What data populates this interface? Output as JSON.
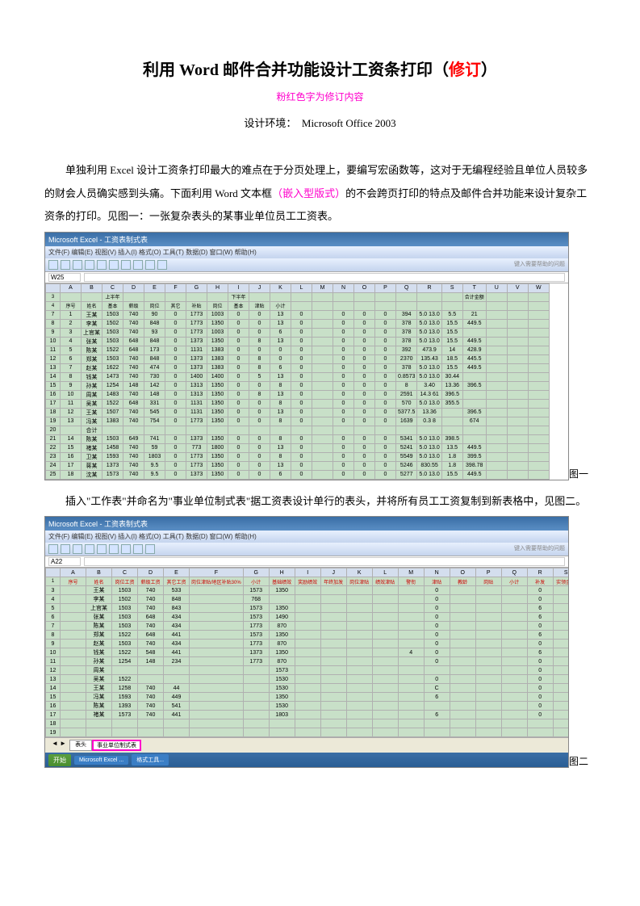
{
  "title_main": "利用 Word 邮件合并功能设计工资条打印（",
  "title_rev": "修订",
  "title_end": "）",
  "subtitle": "粉红色字为修订内容",
  "env_label": "设计环境：",
  "env_value": "Microsoft Office 2003",
  "para1_a": "单独利用 Excel 设计工资条打印最大的难点在于分页处理上，要编写宏函数等，这对于无编程经验且单位人员较多的财会人员确实感到头痛。下面利用 Word 文本框",
  "para1_pink": "（嵌入型版式）",
  "para1_b": "的不会跨页打印的特点及邮件合并功能来设计复杂工资条的打印。见图一：一张复杂表头的某事业单位员工工资表。",
  "para2": "插入\"工作表\"并命名为\"事业单位制式表\"据工资表设计单行的表头，并将所有员工工资复制到新表格中，见图二。",
  "fig1_label": "图一",
  "fig2_label": "图二",
  "excel": {
    "titlebar": "Microsoft Excel - 工资表制式表",
    "menu": "文件(F)  编辑(E)  视图(V)  插入(I)  格式(O)  工具(T)  数据(D)  窗口(W)  帮助(H)",
    "help_hint": "键入需要帮助的问题",
    "cellref1": "W25",
    "cellref2": "A22",
    "cols1": [
      "",
      "A",
      "B",
      "C",
      "D",
      "E",
      "F",
      "G",
      "H",
      "I",
      "J",
      "K",
      "L",
      "M",
      "N",
      "O",
      "P",
      "Q",
      "R",
      "S",
      "T",
      "U",
      "V",
      "W"
    ],
    "head1_r1": [
      "3",
      "",
      "",
      "上半年",
      "",
      "",
      "",
      "",
      "",
      "下半年",
      "",
      "",
      "",
      "",
      "",
      "",
      "",
      "",
      "",
      "",
      "合计金额",
      "",
      "",
      ""
    ],
    "head1_r2": [
      "4",
      "序号",
      "姓名",
      "基本",
      "薪级",
      "岗位",
      "其它",
      "补贴",
      "岗位",
      "基本",
      "津贴",
      "小计",
      "",
      "",
      "",
      "",
      "",
      "",
      "",
      "",
      "",
      "",
      "",
      ""
    ],
    "rows1": [
      [
        "7",
        "1",
        "王某",
        "1503",
        "740",
        "90",
        "0",
        "1773",
        "1003",
        "0",
        "0",
        "13",
        "0",
        "",
        "0",
        "0",
        "0",
        "394",
        "5.0 13.0",
        "5.5",
        "21"
      ],
      [
        "8",
        "2",
        "李某",
        "1502",
        "740",
        "848",
        "0",
        "1773",
        "1350",
        "0",
        "0",
        "13",
        "0",
        "",
        "0",
        "0",
        "0",
        "378",
        "5.0 13.0",
        "15.5",
        "449.5"
      ],
      [
        "9",
        "3",
        "上官某",
        "1503",
        "740",
        "93",
        "0",
        "1773",
        "1003",
        "0",
        "0",
        "6",
        "0",
        "",
        "0",
        "0",
        "0",
        "378",
        "5.0 13.0",
        "15.5",
        ""
      ],
      [
        "10",
        "4",
        "张某",
        "1503",
        "648",
        "848",
        "0",
        "1373",
        "1350",
        "0",
        "8",
        "13",
        "0",
        "",
        "0",
        "0",
        "0",
        "378",
        "5.0 13.0",
        "15.5",
        "449.5"
      ],
      [
        "11",
        "5",
        "陈某",
        "1522",
        "648",
        "173",
        "0",
        "1131",
        "1383",
        "0",
        "0",
        "0",
        "0",
        "",
        "0",
        "0",
        "0",
        "392",
        "473.9",
        "14",
        "428.9"
      ],
      [
        "12",
        "6",
        "郑某",
        "1503",
        "740",
        "848",
        "0",
        "1373",
        "1383",
        "0",
        "8",
        "0",
        "0",
        "",
        "0",
        "0",
        "0",
        "2370",
        "135.43",
        "18.5",
        "445.5"
      ],
      [
        "13",
        "7",
        "赵某",
        "1622",
        "740",
        "474",
        "0",
        "1373",
        "1383",
        "0",
        "8",
        "6",
        "0",
        "",
        "0",
        "0",
        "0",
        "378",
        "5.0 13.0",
        "15.5",
        "449.5"
      ],
      [
        "14",
        "8",
        "钱某",
        "1473",
        "740",
        "730",
        "0",
        "1400",
        "1400",
        "0",
        "5",
        "13",
        "0",
        "",
        "0",
        "0",
        "0",
        "0.8573",
        "5.0 13.0",
        "30.44",
        ""
      ],
      [
        "15",
        "9",
        "孙某",
        "1254",
        "148",
        "142",
        "0",
        "1313",
        "1350",
        "0",
        "0",
        "8",
        "0",
        "",
        "0",
        "0",
        "0",
        "8",
        "3.40",
        "13.36",
        "396.5"
      ],
      [
        "16",
        "10",
        "周某",
        "1483",
        "740",
        "148",
        "0",
        "1313",
        "1350",
        "0",
        "8",
        "13",
        "0",
        "",
        "0",
        "0",
        "0",
        "2591",
        "14.3 61",
        "396.5",
        ""
      ],
      [
        "17",
        "11",
        "吴某",
        "1522",
        "648",
        "331",
        "0",
        "1131",
        "1350",
        "0",
        "0",
        "8",
        "0",
        "",
        "0",
        "0",
        "0",
        "570",
        "5.0 13.0",
        "355.5",
        ""
      ],
      [
        "18",
        "12",
        "王某",
        "1507",
        "740",
        "545",
        "0",
        "1131",
        "1350",
        "0",
        "0",
        "13",
        "0",
        "",
        "0",
        "0",
        "0",
        "5377.5",
        "13.36",
        "",
        "396.5"
      ],
      [
        "19",
        "13",
        "冯某",
        "1383",
        "740",
        "754",
        "0",
        "1773",
        "1350",
        "0",
        "0",
        "8",
        "0",
        "",
        "0",
        "0",
        "0",
        "1639",
        "0.3 8",
        "",
        "674"
      ],
      [
        "20",
        "",
        "合计",
        "",
        "",
        "",
        "",
        "",
        "",
        "",
        "",
        "",
        "",
        "",
        "",
        "",
        "",
        "",
        "",
        "",
        ""
      ],
      [
        "21",
        "14",
        "陈某",
        "1503",
        "649",
        "741",
        "0",
        "1373",
        "1350",
        "0",
        "0",
        "8",
        "0",
        "",
        "0",
        "0",
        "0",
        "5341",
        "5.0 13.0",
        "398.5",
        ""
      ],
      [
        "22",
        "15",
        "褚某",
        "1458",
        "740",
        "59",
        "0",
        "773",
        "1800",
        "0",
        "0",
        "13",
        "0",
        "",
        "0",
        "0",
        "0",
        "5241",
        "5.0 13.0",
        "13.5",
        "449.5"
      ],
      [
        "23",
        "16",
        "卫某",
        "1593",
        "740",
        "1803",
        "0",
        "1773",
        "1350",
        "0",
        "0",
        "8",
        "0",
        "",
        "0",
        "0",
        "0",
        "5549",
        "5.0 13.0",
        "1.8",
        "399.5"
      ],
      [
        "24",
        "17",
        "蒋某",
        "1373",
        "740",
        "9.5",
        "0",
        "1773",
        "1350",
        "0",
        "0",
        "13",
        "0",
        "",
        "0",
        "0",
        "0",
        "5246",
        "830.55",
        "1.8",
        "398.78"
      ],
      [
        "25",
        "18",
        "沈某",
        "1573",
        "740",
        "9.5",
        "0",
        "1373",
        "1350",
        "0",
        "0",
        "6",
        "0",
        "",
        "0",
        "0",
        "0",
        "5277",
        "5.0 13.0",
        "15.5",
        "449.5"
      ]
    ],
    "cols2": [
      "",
      "A",
      "B",
      "C",
      "D",
      "E",
      "F",
      "G",
      "H",
      "I",
      "J",
      "K",
      "L",
      "M",
      "N",
      "O",
      "P",
      "Q",
      "R",
      "S"
    ],
    "head2": [
      "1",
      "序号",
      "姓名",
      "岗位工资",
      "薪级工资",
      "其它工资",
      "岗位津贴/地区补贴30%",
      "小计",
      "基础绩效",
      "奖励绩效",
      "年终加发",
      "岗位津贴",
      "绩效津贴",
      "警衔",
      "津贴",
      "教龄",
      "岗贴",
      "小计",
      "补发",
      "实领金额"
    ],
    "rows2": [
      [
        "3",
        "",
        "王某",
        "1503",
        "740",
        "533",
        "",
        "1573",
        "1350",
        "",
        "",
        "",
        "",
        "",
        "0",
        "",
        "",
        "",
        "0"
      ],
      [
        "4",
        "",
        "李某",
        "1502",
        "740",
        "848",
        "",
        "768",
        "",
        "",
        "",
        "",
        "",
        "",
        "0",
        "",
        "",
        "",
        "0"
      ],
      [
        "5",
        "",
        "上官某",
        "1503",
        "740",
        "843",
        "",
        "1573",
        "1350",
        "",
        "",
        "",
        "",
        "",
        "0",
        "",
        "",
        "",
        "6"
      ],
      [
        "6",
        "",
        "张某",
        "1503",
        "648",
        "434",
        "",
        "1573",
        "1490",
        "",
        "",
        "",
        "",
        "",
        "0",
        "",
        "",
        "",
        "6"
      ],
      [
        "7",
        "",
        "陈某",
        "1503",
        "740",
        "434",
        "",
        "1773",
        "870",
        "",
        "",
        "",
        "",
        "",
        "0",
        "",
        "",
        "",
        "0"
      ],
      [
        "8",
        "",
        "郑某",
        "1522",
        "648",
        "441",
        "",
        "1573",
        "1350",
        "",
        "",
        "",
        "",
        "",
        "0",
        "",
        "",
        "",
        "6"
      ],
      [
        "9",
        "",
        "赵某",
        "1503",
        "740",
        "434",
        "",
        "1773",
        "870",
        "",
        "",
        "",
        "",
        "",
        "0",
        "",
        "",
        "",
        "0"
      ],
      [
        "10",
        "",
        "钱某",
        "1522",
        "548",
        "441",
        "",
        "1373",
        "1350",
        "",
        "",
        "",
        "",
        "4",
        "0",
        "",
        "",
        "",
        "6"
      ],
      [
        "11",
        "",
        "孙某",
        "1254",
        "148",
        "234",
        "",
        "1773",
        "870",
        "",
        "",
        "",
        "",
        "",
        "0",
        "",
        "",
        "",
        "0"
      ],
      [
        "12",
        "",
        "周某",
        "",
        "",
        "",
        "",
        "",
        "1573",
        "",
        "",
        "",
        "",
        "",
        "",
        "",
        "",
        "",
        "0"
      ],
      [
        "13",
        "",
        "吴某",
        "1522",
        "",
        "",
        "",
        "",
        "1530",
        "",
        "",
        "",
        "",
        "",
        "0",
        "",
        "",
        "",
        "0"
      ],
      [
        "14",
        "",
        "王某",
        "1258",
        "740",
        "44",
        "",
        "",
        "1530",
        "",
        "",
        "",
        "",
        "",
        "C",
        "",
        "",
        "",
        "0"
      ],
      [
        "15",
        "",
        "冯某",
        "1593",
        "740",
        "449",
        "",
        "",
        "1350",
        "",
        "",
        "",
        "",
        "",
        "6",
        "",
        "",
        "",
        "0"
      ],
      [
        "16",
        "",
        "陈某",
        "1393",
        "740",
        "541",
        "",
        "",
        "1530",
        "",
        "",
        "",
        "",
        "",
        "",
        "",
        "",
        "",
        "0"
      ],
      [
        "17",
        "",
        "褚某",
        "1573",
        "740",
        "441",
        "",
        "",
        "1803",
        "",
        "",
        "",
        "",
        "",
        "6",
        "",
        "",
        "",
        "0"
      ],
      [
        "18",
        "",
        "",
        "",
        "",
        "",
        "",
        "",
        "",
        "",
        "",
        "",
        "",
        "",
        "",
        "",
        "",
        "",
        ""
      ],
      [
        "19",
        "",
        "",
        "",
        "",
        "",
        "",
        "",
        "",
        "",
        "",
        "",
        "",
        "",
        "",
        "",
        "",
        "",
        ""
      ]
    ],
    "sheet_tabs1": [
      "表头",
      "事业单位制式表"
    ],
    "sheet_tabs2": [
      "表头",
      "事业单位制式表"
    ],
    "taskbar_items": [
      "开始",
      "",
      "",
      "Microsoft Excel ...",
      "格式工具..."
    ]
  },
  "colors": {
    "title_red": "#ff0000",
    "pink": "#ff00cc",
    "excel_cell_green": "#c8e0c8",
    "excel_header": "#d4deee",
    "titlebar": "#3a6ea5"
  }
}
